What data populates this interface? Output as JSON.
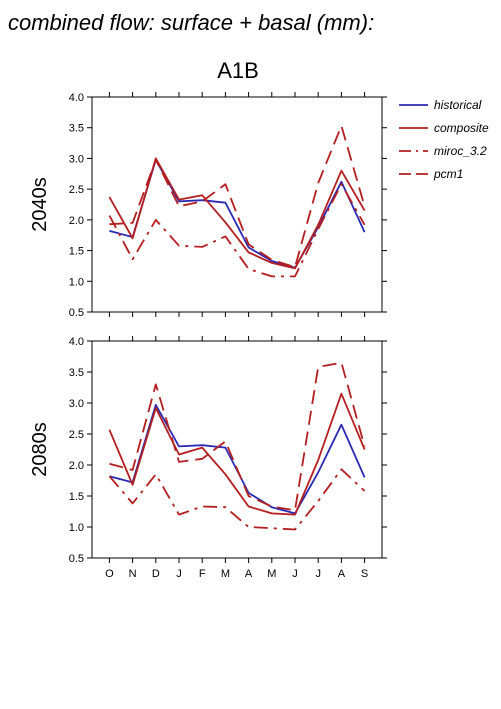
{
  "header": {
    "title": "combined flow: surface + basal (mm):",
    "scenario": "A1B"
  },
  "colors": {
    "historical": "#2a2ab4",
    "composite": "#b41e1e",
    "miroc_3.2": "#b41e1e",
    "pcm1": "#b41e1e"
  },
  "chart_data": [
    {
      "type": "line",
      "row_label": "2040s",
      "categories": [
        "O",
        "N",
        "D",
        "J",
        "F",
        "M",
        "A",
        "M",
        "J",
        "J",
        "A",
        "S"
      ],
      "ylim": [
        0.5,
        4.0
      ],
      "yticks": [
        "0.5",
        "1.0",
        "1.5",
        "2.0",
        "2.5",
        "3.0",
        "3.5",
        "4.0"
      ],
      "series": [
        {
          "name": "historical",
          "style": "solid",
          "color": "#2a2ab4",
          "values": [
            1.82,
            1.72,
            2.98,
            2.3,
            2.32,
            2.28,
            1.55,
            1.33,
            1.22,
            1.88,
            2.62,
            1.8
          ]
        },
        {
          "name": "composite",
          "style": "solid",
          "color": "#b41e1e",
          "values": [
            2.37,
            1.7,
            3.0,
            2.33,
            2.4,
            1.96,
            1.47,
            1.3,
            1.21,
            1.92,
            2.8,
            2.15
          ]
        },
        {
          "name": "miroc_3.2",
          "style": "dashdot",
          "color": "#b41e1e",
          "values": [
            2.07,
            1.36,
            2.0,
            1.58,
            1.56,
            1.73,
            1.2,
            1.08,
            1.08,
            1.85,
            2.58,
            1.92
          ]
        },
        {
          "name": "pcm1",
          "style": "dashed",
          "color": "#b41e1e",
          "values": [
            1.93,
            1.95,
            2.98,
            2.22,
            2.3,
            2.58,
            1.6,
            1.35,
            1.23,
            2.6,
            3.53,
            2.22
          ]
        }
      ]
    },
    {
      "type": "line",
      "row_label": "2080s",
      "categories": [
        "O",
        "N",
        "D",
        "J",
        "F",
        "M",
        "A",
        "M",
        "J",
        "J",
        "A",
        "S"
      ],
      "ylim": [
        0.5,
        4.0
      ],
      "yticks": [
        "0.5",
        "1.0",
        "1.5",
        "2.0",
        "2.5",
        "3.0",
        "3.5",
        "4.0"
      ],
      "series": [
        {
          "name": "historical",
          "style": "solid",
          "color": "#2a2ab4",
          "values": [
            1.82,
            1.72,
            2.97,
            2.3,
            2.32,
            2.28,
            1.55,
            1.32,
            1.22,
            1.88,
            2.65,
            1.8
          ]
        },
        {
          "name": "composite",
          "style": "solid",
          "color": "#b41e1e",
          "values": [
            2.57,
            1.68,
            2.92,
            2.17,
            2.28,
            1.85,
            1.33,
            1.22,
            1.2,
            2.08,
            3.15,
            2.25
          ]
        },
        {
          "name": "miroc_3.2",
          "style": "dashdot",
          "color": "#b41e1e",
          "values": [
            1.82,
            1.38,
            1.85,
            1.2,
            1.33,
            1.32,
            1.0,
            0.98,
            0.96,
            1.42,
            1.93,
            1.58
          ]
        },
        {
          "name": "pcm1",
          "style": "dashed",
          "color": "#b41e1e",
          "values": [
            2.02,
            1.92,
            3.3,
            2.05,
            2.1,
            2.38,
            1.5,
            1.33,
            1.27,
            3.58,
            3.65,
            2.3
          ]
        }
      ]
    }
  ],
  "legend": {
    "items": [
      {
        "label": "historical",
        "style": "solid",
        "color": "#2a2ab4"
      },
      {
        "label": "composite",
        "style": "solid",
        "color": "#b41e1e"
      },
      {
        "label": "miroc_3.2",
        "style": "dashdot",
        "color": "#b41e1e"
      },
      {
        "label": "pcm1",
        "style": "dashed",
        "color": "#b41e1e"
      }
    ]
  }
}
